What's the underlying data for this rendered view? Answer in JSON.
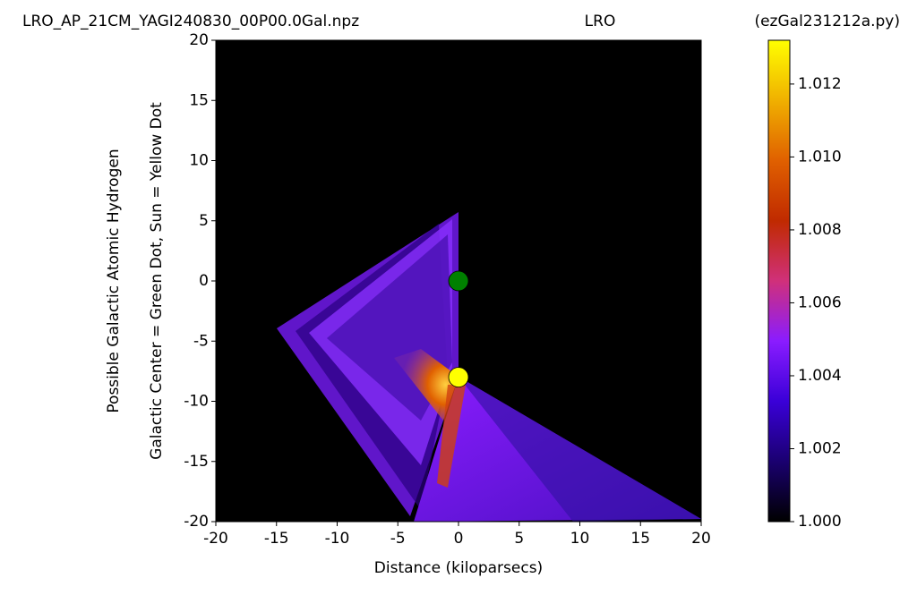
{
  "chart_data": {
    "type": "heatmap",
    "title_left": "LRO_AP_21CM_YAGI240830_00P00.0Gal.npz",
    "title_center": "LRO",
    "title_right": "(ezGal231212a.py)",
    "xlabel": "Distance (kiloparsecs)",
    "ylabel": [
      "Possible Galactic Atomic Hydrogen",
      "Galactic Center = Green Dot, Sun = Yellow Dot"
    ],
    "xlim": [
      -20,
      20
    ],
    "ylim": [
      -20,
      20
    ],
    "xticks": [
      -20,
      -15,
      -10,
      -5,
      0,
      5,
      10,
      15,
      20
    ],
    "yticks": [
      -20,
      -15,
      -10,
      -5,
      0,
      5,
      10,
      15,
      20
    ],
    "points": [
      {
        "x": 0,
        "y": 0,
        "color": "#008000"
      },
      {
        "x": 0,
        "y": -8,
        "color": "#ffff00"
      }
    ],
    "colorbar": {
      "lim": [
        1.0,
        1.0132
      ],
      "ticks": [
        {
          "value": 1.0,
          "label": "1.000"
        },
        1.002,
        1.004,
        1.006,
        1.008,
        {
          "value": 1.01,
          "label": "1.010"
        },
        1.012
      ],
      "colors": [
        "#000000",
        "#1a0070",
        "#3a00d8",
        "#8a1cff",
        "#d0307a",
        "#c02a00",
        "#e06000",
        "#f0b000",
        "#ffff00"
      ]
    }
  }
}
